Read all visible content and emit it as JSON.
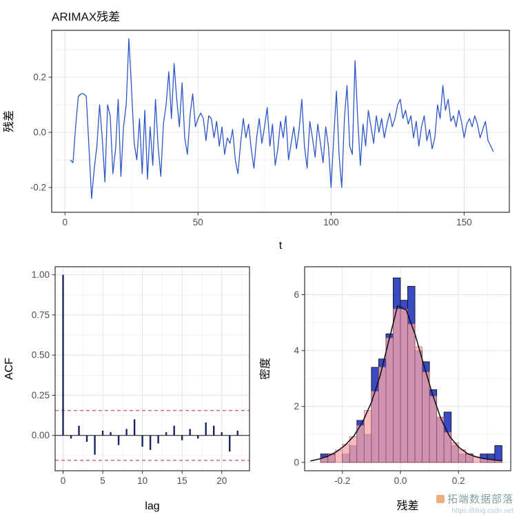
{
  "title": "ARIMAX残差",
  "watermark": {
    "text": "拓端数据部落",
    "url": "https://blog.csdn.net"
  },
  "colors": {
    "line": "#2b55c8",
    "acf_bar": "#16245e",
    "conf_dash": "#cc5f74",
    "hist_fill": "#3a49c4",
    "hist_stroke": "#151515",
    "density_fill": "#f7a8ac",
    "density_bar_stroke": "#b5556d",
    "density_stroke": "#141414",
    "grid_major": "#e2e2e2",
    "grid_minor": "#f1f1f1",
    "panel_border": "#2d2d2d",
    "tick_label": "#4d4d4d",
    "axis_title": "#000000"
  },
  "chart_data": [
    {
      "type": "line",
      "title": "ARIMAX残差",
      "xlabel": "t",
      "ylabel": "残差",
      "x_start": 2,
      "xlim": [
        -5,
        167
      ],
      "ylim": [
        -0.29,
        0.37
      ],
      "x_ticks": [
        0,
        50,
        100,
        150
      ],
      "x_tick_labels": [
        "0",
        "50",
        "100",
        "150"
      ],
      "y_ticks": [
        -0.2,
        0.0,
        0.2
      ],
      "y_tick_labels": [
        "-0.2",
        "0.0",
        "0.2"
      ],
      "grid": true,
      "values": [
        -0.1,
        -0.11,
        0.02,
        0.13,
        0.14,
        0.14,
        0.13,
        -0.05,
        -0.24,
        -0.13,
        -0.05,
        0.1,
        -0.02,
        -0.18,
        0.1,
        0.06,
        -0.15,
        -0.06,
        0.12,
        -0.16,
        0.02,
        0.1,
        0.34,
        0.16,
        -0.04,
        -0.1,
        0.05,
        -0.15,
        0.08,
        -0.17,
        0.02,
        -0.12,
        0.12,
        -0.05,
        -0.16,
        0.03,
        0.1,
        0.22,
        0.05,
        0.25,
        0.12,
        0.02,
        0.18,
        -0.02,
        -0.08,
        0.06,
        0.14,
        0.02,
        0.05,
        0.07,
        0.05,
        -0.03,
        0.06,
        0.05,
        -0.02,
        0.04,
        -0.05,
        0.02,
        -0.08,
        -0.02,
        -0.04,
        0.01,
        -0.1,
        -0.15,
        -0.04,
        0.05,
        -0.02,
        0.03,
        -0.06,
        -0.13,
        -0.02,
        0.05,
        -0.04,
        0.02,
        0.09,
        -0.05,
        0.03,
        -0.12,
        -0.06,
        0.04,
        -0.02,
        0.06,
        -0.1,
        -0.04,
        0.02,
        -0.06,
        0.01,
        0.12,
        -0.05,
        -0.13,
        0.04,
        -0.02,
        -0.09,
        0.03,
        -0.04,
        -0.11,
        0.02,
        -0.05,
        -0.2,
        -0.02,
        0.15,
        -0.08,
        -0.2,
        0.05,
        0.17,
        -0.05,
        -0.08,
        0.26,
        0.05,
        -0.12,
        0.03,
        -0.05,
        0.08,
        0.02,
        -0.04,
        0.06,
        0.0,
        0.05,
        -0.02,
        0.03,
        0.07,
        0.02,
        0.05,
        0.1,
        0.12,
        0.05,
        0.08,
        0.03,
        0.06,
        -0.02,
        0.04,
        -0.05,
        0.02,
        0.06,
        -0.03,
        0.01,
        -0.06,
        -0.02,
        0.1,
        0.05,
        0.17,
        0.08,
        0.12,
        0.04,
        0.06,
        0.02,
        0.08,
        0.04,
        -0.02,
        0.03,
        0.05,
        0.02,
        0.06,
        0.03,
        -0.02,
        0.01,
        0.04,
        -0.03,
        -0.05,
        -0.07
      ]
    },
    {
      "type": "bar",
      "title": "",
      "xlabel": "lag",
      "ylabel": "ACF",
      "xlim": [
        -1,
        23.5
      ],
      "ylim": [
        -0.22,
        1.05
      ],
      "x_ticks": [
        0,
        5,
        10,
        15,
        20
      ],
      "x_tick_labels": [
        "0",
        "5",
        "10",
        "15",
        "20"
      ],
      "y_ticks": [
        0.0,
        0.25,
        0.5,
        0.75,
        1.0
      ],
      "y_tick_labels": [
        "0.00",
        "0.25",
        "0.50",
        "0.75",
        "1.00"
      ],
      "conf_bound": 0.155,
      "lag_start": 0,
      "values": [
        1.0,
        -0.02,
        0.06,
        -0.04,
        -0.12,
        0.03,
        0.02,
        -0.06,
        0.04,
        0.1,
        -0.07,
        -0.09,
        -0.05,
        0.02,
        0.06,
        -0.03,
        0.04,
        -0.02,
        0.08,
        0.06,
        0.02,
        -0.1,
        0.03
      ]
    },
    {
      "type": "histogram",
      "title": "",
      "xlabel": "残差",
      "ylabel": "密度",
      "xlim": [
        -0.33,
        0.38
      ],
      "ylim": [
        -0.3,
        7.0
      ],
      "x_ticks": [
        -0.2,
        0.0,
        0.2
      ],
      "x_tick_labels": [
        "-0.2",
        "0.0",
        "0.2"
      ],
      "y_ticks": [
        0,
        2,
        4,
        6
      ],
      "y_tick_labels": [
        "0",
        "2",
        "4",
        "6"
      ],
      "bin_width": 0.025,
      "bin_lefts": [
        -0.275,
        -0.25,
        -0.225,
        -0.2,
        -0.175,
        -0.15,
        -0.125,
        -0.1,
        -0.075,
        -0.05,
        -0.025,
        0.0,
        0.025,
        0.05,
        0.075,
        0.1,
        0.125,
        0.15,
        0.175,
        0.2,
        0.225,
        0.25,
        0.275,
        0.3,
        0.325
      ],
      "bin_heights": [
        0.3,
        0.3,
        0.0,
        0.3,
        0.6,
        1.5,
        1.0,
        3.4,
        3.7,
        4.6,
        6.6,
        5.8,
        6.3,
        4.0,
        3.6,
        2.6,
        1.6,
        1.8,
        0.6,
        0.3,
        0.3,
        0.0,
        0.3,
        0.3,
        0.6
      ],
      "density": {
        "x": [
          -0.31,
          -0.28,
          -0.25,
          -0.22,
          -0.19,
          -0.16,
          -0.13,
          -0.1,
          -0.07,
          -0.04,
          -0.01,
          0.02,
          0.05,
          0.08,
          0.11,
          0.14,
          0.17,
          0.2,
          0.23,
          0.26,
          0.29,
          0.32,
          0.35
        ],
        "y": [
          0.05,
          0.12,
          0.22,
          0.38,
          0.62,
          0.95,
          1.45,
          2.15,
          3.1,
          4.35,
          5.6,
          5.45,
          4.6,
          3.5,
          2.45,
          1.55,
          0.92,
          0.55,
          0.32,
          0.2,
          0.13,
          0.09,
          0.06
        ]
      }
    }
  ]
}
